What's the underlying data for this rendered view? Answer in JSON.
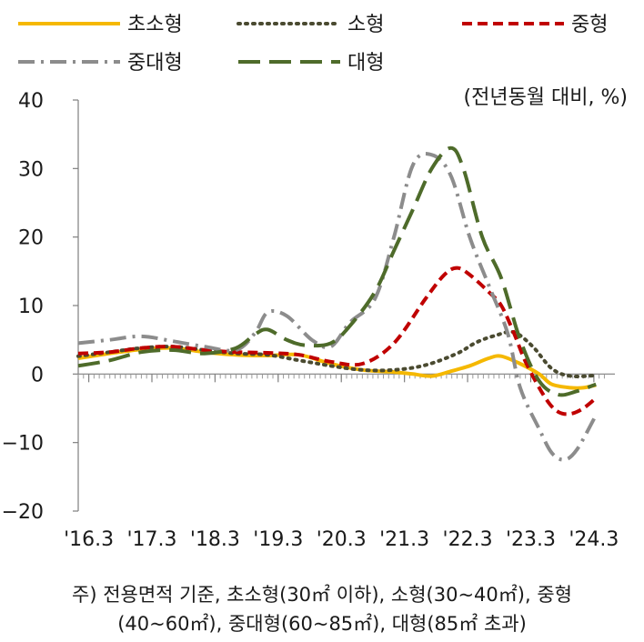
{
  "chart_data": {
    "type": "line",
    "unit_note": "(전년동월 대비, %)",
    "ylim": [
      -20,
      40
    ],
    "yticks": [
      40,
      30,
      20,
      10,
      0,
      -10,
      -20
    ],
    "ytick_labels": [
      "40",
      "30",
      "20",
      "10",
      "0",
      "-10",
      "-20"
    ],
    "xticks": [
      2016.167,
      2017.167,
      2018.167,
      2019.167,
      2020.167,
      2021.167,
      2022.167,
      2023.167,
      2024.167
    ],
    "xtick_labels": [
      "'16.3",
      "'17.3",
      "'18.3",
      "'19.3",
      "'20.3",
      "'21.3",
      "'22.3",
      "'23.3",
      "'24.3"
    ],
    "xlim": [
      2016.0,
      2024.5
    ],
    "grid": false,
    "legend_position": "top",
    "series": [
      {
        "name": "초소형",
        "color": "#F5B800",
        "dash": "solid",
        "points": [
          [
            2016.0,
            2.3
          ],
          [
            2016.5,
            3.0
          ],
          [
            2017.0,
            3.6
          ],
          [
            2017.5,
            3.8
          ],
          [
            2018.0,
            3.2
          ],
          [
            2018.5,
            2.8
          ],
          [
            2019.0,
            2.7
          ],
          [
            2019.5,
            2.8
          ],
          [
            2020.0,
            1.5
          ],
          [
            2020.5,
            0.6
          ],
          [
            2021.0,
            0.3
          ],
          [
            2021.3,
            0.0
          ],
          [
            2021.6,
            -0.3
          ],
          [
            2021.9,
            0.4
          ],
          [
            2022.2,
            1.2
          ],
          [
            2022.5,
            2.3
          ],
          [
            2022.7,
            2.6
          ],
          [
            2023.0,
            1.5
          ],
          [
            2023.3,
            0.0
          ],
          [
            2023.5,
            -1.5
          ],
          [
            2023.8,
            -2.0
          ],
          [
            2024.0,
            -2.0
          ],
          [
            2024.2,
            -1.6
          ]
        ]
      },
      {
        "name": "소형",
        "color": "#4A4A30",
        "dash": "dot",
        "points": [
          [
            2016.0,
            2.6
          ],
          [
            2016.5,
            3.2
          ],
          [
            2017.0,
            3.8
          ],
          [
            2017.5,
            4.0
          ],
          [
            2018.0,
            3.5
          ],
          [
            2018.5,
            3.0
          ],
          [
            2019.0,
            2.8
          ],
          [
            2019.5,
            2.0
          ],
          [
            2020.0,
            1.2
          ],
          [
            2020.5,
            0.6
          ],
          [
            2021.0,
            0.6
          ],
          [
            2021.5,
            1.3
          ],
          [
            2022.0,
            3.0
          ],
          [
            2022.3,
            4.6
          ],
          [
            2022.6,
            5.6
          ],
          [
            2022.9,
            6.1
          ],
          [
            2023.2,
            4.0
          ],
          [
            2023.5,
            0.8
          ],
          [
            2023.8,
            -0.3
          ],
          [
            2024.2,
            -0.2
          ]
        ]
      },
      {
        "name": "중형",
        "color": "#C00000",
        "dash": "dash",
        "points": [
          [
            2016.0,
            3.0
          ],
          [
            2016.5,
            3.2
          ],
          [
            2017.0,
            3.8
          ],
          [
            2017.5,
            4.0
          ],
          [
            2018.0,
            3.5
          ],
          [
            2018.5,
            3.2
          ],
          [
            2019.0,
            3.1
          ],
          [
            2019.5,
            2.8
          ],
          [
            2020.0,
            1.8
          ],
          [
            2020.5,
            1.5
          ],
          [
            2021.0,
            4.5
          ],
          [
            2021.5,
            11.0
          ],
          [
            2021.8,
            14.5
          ],
          [
            2022.0,
            15.5
          ],
          [
            2022.2,
            14.5
          ],
          [
            2022.5,
            12.0
          ],
          [
            2022.7,
            10.0
          ],
          [
            2022.9,
            6.0
          ],
          [
            2023.1,
            1.5
          ],
          [
            2023.4,
            -3.5
          ],
          [
            2023.6,
            -5.5
          ],
          [
            2023.8,
            -5.8
          ],
          [
            2024.0,
            -5.0
          ],
          [
            2024.2,
            -3.5
          ]
        ]
      },
      {
        "name": "중대형",
        "color": "#8C8C8C",
        "dash": "dashdot",
        "points": [
          [
            2016.0,
            4.5
          ],
          [
            2016.5,
            5.0
          ],
          [
            2017.0,
            5.5
          ],
          [
            2017.5,
            4.8
          ],
          [
            2018.0,
            4.0
          ],
          [
            2018.5,
            3.5
          ],
          [
            2018.8,
            6.0
          ],
          [
            2019.0,
            9.0
          ],
          [
            2019.3,
            8.5
          ],
          [
            2019.7,
            5.0
          ],
          [
            2020.0,
            4.0
          ],
          [
            2020.3,
            7.5
          ],
          [
            2020.7,
            11.0
          ],
          [
            2021.0,
            20.0
          ],
          [
            2021.3,
            30.5
          ],
          [
            2021.6,
            32.0
          ],
          [
            2021.9,
            29.0
          ],
          [
            2022.2,
            20.0
          ],
          [
            2022.5,
            13.0
          ],
          [
            2022.8,
            6.0
          ],
          [
            2023.0,
            -2.0
          ],
          [
            2023.3,
            -8.0
          ],
          [
            2023.5,
            -11.5
          ],
          [
            2023.7,
            -12.5
          ],
          [
            2023.9,
            -11.0
          ],
          [
            2024.2,
            -6.0
          ]
        ]
      },
      {
        "name": "대형",
        "color": "#4E6B2A",
        "dash": "longdash",
        "points": [
          [
            2016.0,
            1.2
          ],
          [
            2016.5,
            2.0
          ],
          [
            2017.0,
            3.2
          ],
          [
            2017.5,
            3.5
          ],
          [
            2018.0,
            3.0
          ],
          [
            2018.5,
            3.8
          ],
          [
            2018.8,
            5.8
          ],
          [
            2019.0,
            6.5
          ],
          [
            2019.3,
            5.0
          ],
          [
            2019.6,
            4.2
          ],
          [
            2020.0,
            4.5
          ],
          [
            2020.3,
            7.0
          ],
          [
            2020.7,
            12.0
          ],
          [
            2021.0,
            18.0
          ],
          [
            2021.3,
            24.0
          ],
          [
            2021.6,
            30.0
          ],
          [
            2021.9,
            33.0
          ],
          [
            2022.1,
            30.0
          ],
          [
            2022.4,
            20.0
          ],
          [
            2022.7,
            14.0
          ],
          [
            2023.0,
            5.0
          ],
          [
            2023.3,
            -1.0
          ],
          [
            2023.6,
            -3.0
          ],
          [
            2023.9,
            -2.5
          ],
          [
            2024.2,
            -1.5
          ]
        ]
      }
    ]
  },
  "note": {
    "line1": "주) 전용면적 기준, 초소형(30㎡ 이하), 소형(30~40㎡), 중형",
    "line2": "(40~60㎡), 중대형(60~85㎡), 대형(85㎡ 초과)"
  }
}
